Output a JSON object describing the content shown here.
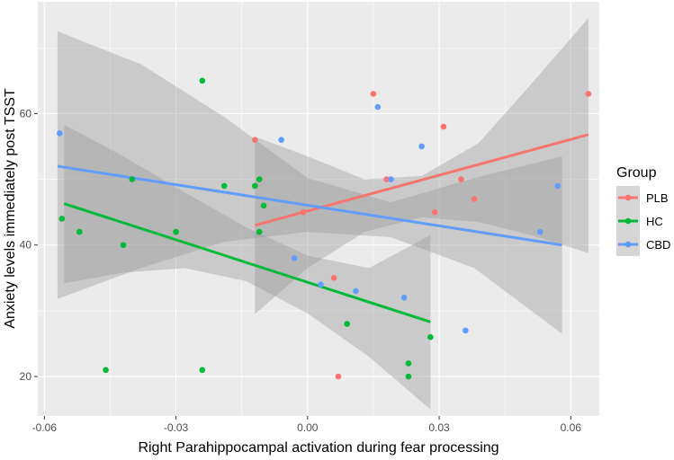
{
  "chart_data": {
    "type": "scatter",
    "title": "",
    "xlabel": "Right Parahippocampal activation during fear processing",
    "ylabel": "Anxiety levels immediately post TSST",
    "xlim": [
      -0.0615,
      0.0665
    ],
    "ylim": [
      14,
      77
    ],
    "x_ticks": [
      -0.06,
      -0.03,
      0.0,
      0.03,
      0.06
    ],
    "x_tick_labels": [
      "-0.06",
      "-0.03",
      "0.00",
      "0.03",
      "0.06"
    ],
    "y_ticks": [
      20,
      40,
      60
    ],
    "y_tick_labels": [
      "20",
      "40",
      "60"
    ],
    "grid": true,
    "legend": {
      "title": "Group",
      "position": "right",
      "entries": [
        "PLB",
        "HC",
        "CBD"
      ]
    },
    "series": [
      {
        "name": "PLB",
        "color": "#F8766D",
        "points": [
          {
            "x": -0.012,
            "y": 56
          },
          {
            "x": -0.012,
            "y": 49
          },
          {
            "x": -0.001,
            "y": 45
          },
          {
            "x": 0.006,
            "y": 35
          },
          {
            "x": 0.007,
            "y": 20
          },
          {
            "x": 0.015,
            "y": 63
          },
          {
            "x": 0.018,
            "y": 50
          },
          {
            "x": 0.029,
            "y": 45
          },
          {
            "x": 0.031,
            "y": 58
          },
          {
            "x": 0.035,
            "y": 50
          },
          {
            "x": 0.038,
            "y": 47
          },
          {
            "x": 0.064,
            "y": 63
          }
        ],
        "fit": {
          "x": [
            -0.012,
            0.064
          ],
          "y": [
            43,
            56.8
          ]
        },
        "ci": {
          "x": [
            -0.012,
            0.0,
            0.013,
            0.026,
            0.039,
            0.051,
            0.064
          ],
          "lower": [
            29.5,
            36.5,
            42.0,
            44.2,
            43.5,
            41.5,
            38.8
          ],
          "upper": [
            56.5,
            53.5,
            50.0,
            50.5,
            55.5,
            64.5,
            74.5
          ]
        }
      },
      {
        "name": "HC",
        "color": "#00BA38",
        "points": [
          {
            "x": -0.056,
            "y": 44
          },
          {
            "x": -0.052,
            "y": 42
          },
          {
            "x": -0.046,
            "y": 21
          },
          {
            "x": -0.042,
            "y": 40
          },
          {
            "x": -0.04,
            "y": 50
          },
          {
            "x": -0.03,
            "y": 42
          },
          {
            "x": -0.024,
            "y": 65
          },
          {
            "x": -0.024,
            "y": 21
          },
          {
            "x": -0.019,
            "y": 49
          },
          {
            "x": -0.011,
            "y": 50
          },
          {
            "x": -0.011,
            "y": 42
          },
          {
            "x": -0.01,
            "y": 46
          },
          {
            "x": -0.012,
            "y": 49
          },
          {
            "x": 0.009,
            "y": 28
          },
          {
            "x": 0.023,
            "y": 22
          },
          {
            "x": 0.023,
            "y": 20
          },
          {
            "x": 0.028,
            "y": 26
          }
        ],
        "fit": {
          "x": [
            -0.0555,
            0.028
          ],
          "y": [
            46.3,
            28.3
          ]
        },
        "ci": {
          "x": [
            -0.0555,
            -0.042,
            -0.028,
            -0.014,
            0.0,
            0.014,
            0.028
          ],
          "lower": [
            34.2,
            35.8,
            36.5,
            34.5,
            29.6,
            23.0,
            15.0
          ],
          "upper": [
            58.3,
            53.5,
            48.0,
            42.7,
            38.4,
            36.5,
            41.5
          ]
        }
      },
      {
        "name": "CBD",
        "color": "#619CFF",
        "points": [
          {
            "x": -0.0565,
            "y": 57
          },
          {
            "x": -0.006,
            "y": 56
          },
          {
            "x": -0.003,
            "y": 38
          },
          {
            "x": 0.003,
            "y": 34
          },
          {
            "x": 0.011,
            "y": 33
          },
          {
            "x": 0.016,
            "y": 61
          },
          {
            "x": 0.019,
            "y": 50
          },
          {
            "x": 0.022,
            "y": 32
          },
          {
            "x": 0.026,
            "y": 55
          },
          {
            "x": 0.036,
            "y": 27
          },
          {
            "x": 0.053,
            "y": 42
          },
          {
            "x": 0.057,
            "y": 49
          }
        ],
        "fit": {
          "x": [
            -0.057,
            0.058
          ],
          "y": [
            52,
            40
          ]
        },
        "ci": {
          "x": [
            -0.057,
            -0.038,
            -0.019,
            0.0,
            0.019,
            0.038,
            0.058
          ],
          "lower": [
            31.8,
            36.5,
            40.5,
            42.0,
            41.2,
            36.5,
            26.5
          ],
          "upper": [
            72.5,
            67.5,
            59.5,
            50.2,
            46.5,
            50.2,
            53.5
          ]
        }
      }
    ]
  }
}
